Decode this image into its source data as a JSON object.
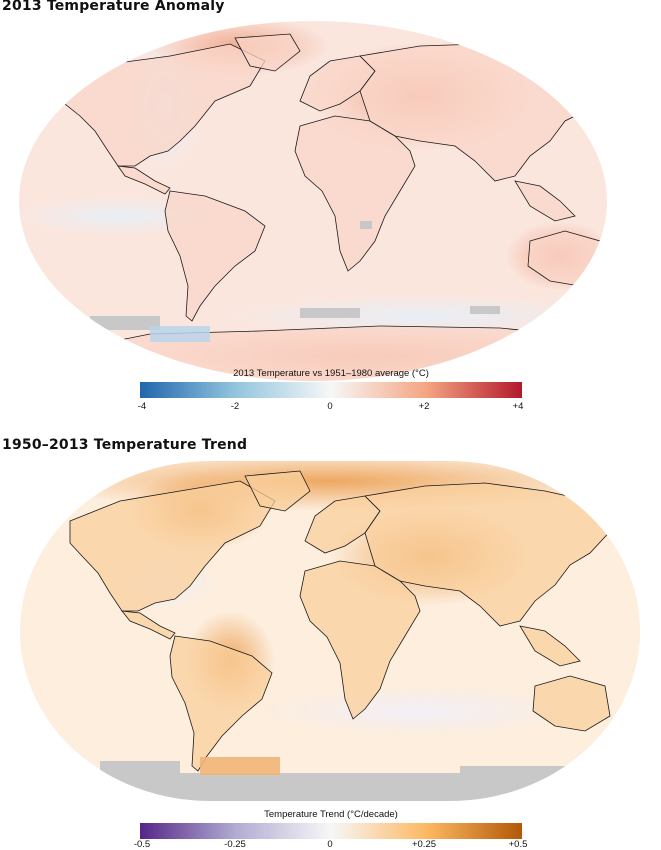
{
  "panels": [
    {
      "title": "2013 Temperature Anomaly",
      "colorbar": {
        "label": "2013 Temperature vs 1951–1980 average (°C)",
        "ticks": [
          "-4",
          "-2",
          "0",
          "+2",
          "+4"
        ],
        "range": [
          -4,
          4
        ],
        "colors": [
          "#2166ac",
          "#92c5de",
          "#f7f7f7",
          "#f4a582",
          "#b2182b"
        ]
      },
      "palette": {
        "ocean": "#fbe6dd",
        "ocean_cool": "#e8eef5",
        "land": "#f9d6c8",
        "hot": "#f0a58c",
        "nodata": "#c8c8c8"
      }
    },
    {
      "title": "1950–2013 Temperature Trend",
      "colorbar": {
        "label": "Temperature Trend (°C/decade)",
        "ticks": [
          "-0.5",
          "-0.25",
          "0",
          "+0.25",
          "+0.5"
        ],
        "range": [
          -0.5,
          0.5
        ],
        "colors": [
          "#542788",
          "#b2abd2",
          "#f7f7f7",
          "#fdb863",
          "#b35806"
        ]
      },
      "palette": {
        "ocean": "#fdeedd",
        "ocean_cool": "#f2eff7",
        "land": "#f9cf9c",
        "hot": "#eda45a",
        "nodata": "#c8c8c8"
      }
    }
  ]
}
